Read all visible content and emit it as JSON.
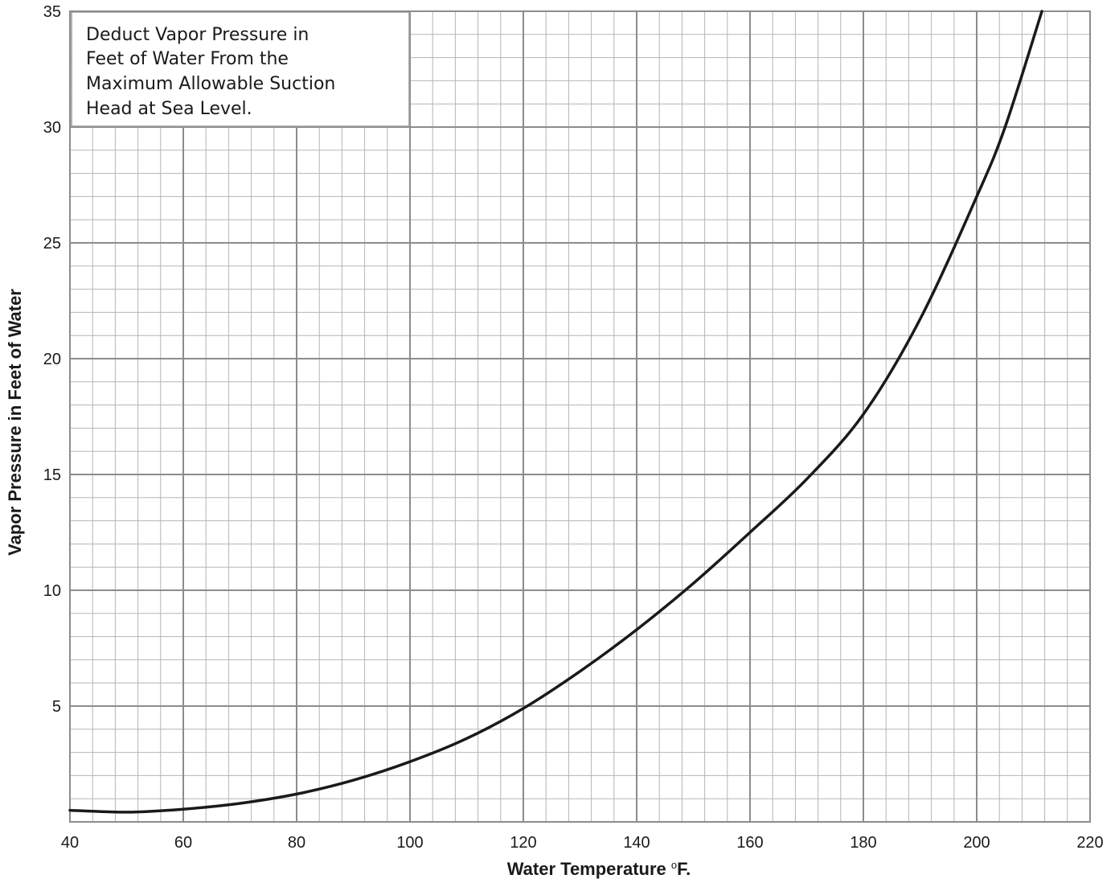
{
  "chart_data": {
    "type": "line",
    "title": "",
    "xlabel": "Water Temperature",
    "xlabel_unit": "F.",
    "xlabel_unit_sup": "o",
    "ylabel": "Vapor Pressure in Feet of Water",
    "xlim": [
      40,
      220
    ],
    "ylim": [
      0,
      35
    ],
    "x_ticks": [
      "40",
      "60",
      "80",
      "100",
      "120",
      "140",
      "160",
      "180",
      "200",
      "220"
    ],
    "y_ticks": [
      "5",
      "10",
      "15",
      "20",
      "25",
      "30",
      "35"
    ],
    "grid": true,
    "legend": "none",
    "annotation": {
      "placement": "top-left",
      "lines": [
        "Deduct Vapor Pressure in",
        "Feet of Water From the",
        "Maximum Allowable Suction",
        "Head at Sea Level."
      ]
    },
    "series": [
      {
        "color": "#1a1a1a",
        "points": [
          [
            40,
            0.5
          ],
          [
            50,
            0.42
          ],
          [
            60,
            0.55
          ],
          [
            70,
            0.8
          ],
          [
            80,
            1.2
          ],
          [
            90,
            1.8
          ],
          [
            100,
            2.6
          ],
          [
            110,
            3.6
          ],
          [
            120,
            4.9
          ],
          [
            130,
            6.5
          ],
          [
            140,
            8.3
          ],
          [
            150,
            10.3
          ],
          [
            160,
            12.5
          ],
          [
            170,
            14.8
          ],
          [
            180,
            17.6
          ],
          [
            190,
            21.7
          ],
          [
            200,
            27.0
          ],
          [
            205,
            30.0
          ],
          [
            211.5,
            35.0
          ]
        ]
      }
    ]
  }
}
